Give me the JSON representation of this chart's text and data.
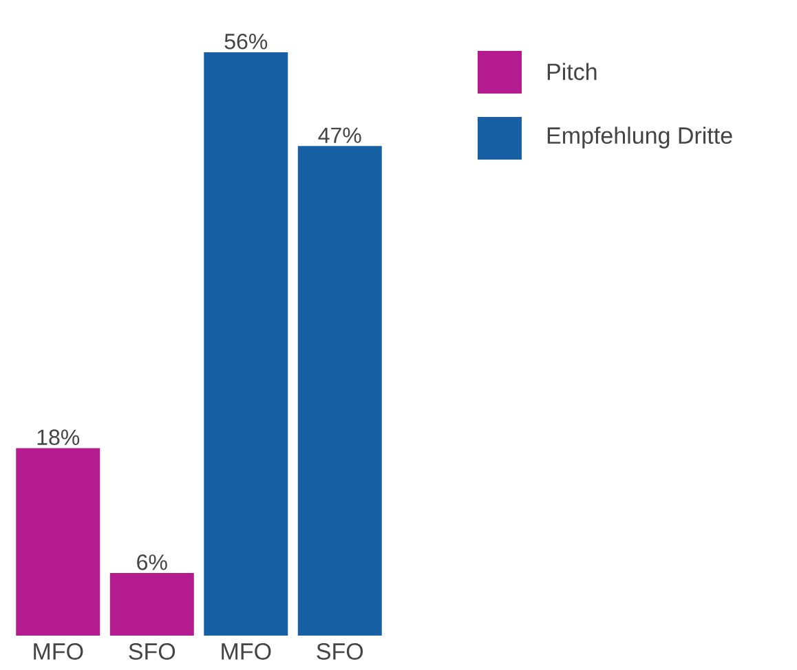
{
  "chart_data": {
    "type": "bar",
    "categories": [
      "MFO",
      "SFO",
      "MFO",
      "SFO"
    ],
    "series": [
      {
        "name": "Pitch",
        "color": "#b31b8e",
        "values": [
          18,
          6,
          null,
          null
        ],
        "value_labels": [
          "18%",
          "6%",
          null,
          null
        ]
      },
      {
        "name": "Empfehlung Dritte",
        "color": "#1660a3",
        "values": [
          null,
          null,
          56,
          47
        ],
        "value_labels": [
          null,
          null,
          "56%",
          "47%"
        ]
      }
    ],
    "legend": "right"
  }
}
